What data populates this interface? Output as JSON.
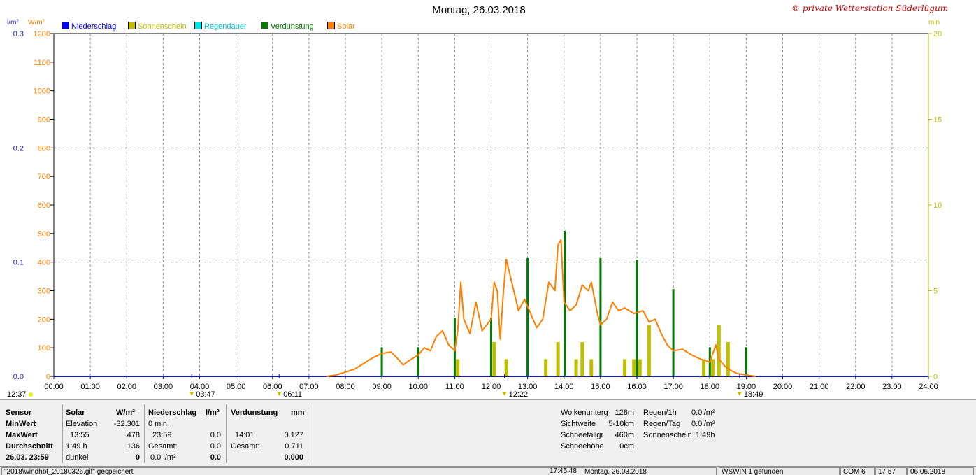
{
  "header": {
    "title": "Montag, 26.03.2018",
    "copyright": "© private Wetterstation Süderlügum",
    "left_unit_rain": "l/m²",
    "left_unit_solar": "W/m²",
    "right_unit": "min"
  },
  "legend": [
    {
      "label": "Niederschlag",
      "color": "#0000ff"
    },
    {
      "label": "Sonnenschein",
      "color": "#bfbf00"
    },
    {
      "label": "Regendauer",
      "color": "#00e5e5"
    },
    {
      "label": "Verdunstung",
      "color": "#007a00"
    },
    {
      "label": "Solar",
      "color": "#ff7f00"
    }
  ],
  "colors": {
    "rain": "#1a1aa8",
    "solar": "#ff7f00",
    "sun": "#bfbf00",
    "evap": "#007a00",
    "grid": "#8c8c8c",
    "axis_solar": "#ff7f00",
    "axis_rain": "#1a1aa8",
    "axis_right": "#bfbf00"
  },
  "chart_data": {
    "type": "line",
    "x_range": [
      "00:00",
      "24:00"
    ],
    "x_ticks": [
      "00:00",
      "01:00",
      "02:00",
      "03:00",
      "04:00",
      "05:00",
      "06:00",
      "07:00",
      "08:00",
      "09:00",
      "10:00",
      "11:00",
      "12:00",
      "13:00",
      "14:00",
      "15:00",
      "16:00",
      "17:00",
      "18:00",
      "19:00",
      "20:00",
      "21:00",
      "22:00",
      "23:00",
      "24:00"
    ],
    "axes": {
      "solar": {
        "unit": "W/m²",
        "range": [
          0,
          1200
        ],
        "ticks": [
          0,
          100,
          200,
          300,
          400,
          500,
          600,
          700,
          800,
          900,
          1000,
          1100,
          1200
        ]
      },
      "rain": {
        "unit": "l/m²",
        "range": [
          0,
          0.3
        ],
        "ticks": [
          "0.0",
          "0.1",
          "0.2",
          "0.3"
        ]
      },
      "minutes": {
        "unit": "min",
        "range": [
          0,
          20
        ],
        "ticks": [
          0,
          5,
          10,
          15,
          20
        ]
      }
    },
    "grid": true,
    "markers": {
      "top": [
        {
          "time": "03:47",
          "label": "03:47"
        },
        {
          "time": "06:11",
          "label": "06:11"
        },
        {
          "time": "12:22",
          "label": "12:22"
        },
        {
          "time": "18:49",
          "label": "18:49"
        }
      ],
      "moon_label": "12:37"
    },
    "series": [
      {
        "name": "Solar",
        "unit": "W/m²",
        "points": [
          [
            "07:30",
            0
          ],
          [
            "07:45",
            5
          ],
          [
            "08:00",
            15
          ],
          [
            "08:15",
            25
          ],
          [
            "08:30",
            45
          ],
          [
            "08:45",
            65
          ],
          [
            "09:00",
            80
          ],
          [
            "09:15",
            85
          ],
          [
            "09:25",
            65
          ],
          [
            "09:35",
            40
          ],
          [
            "09:45",
            55
          ],
          [
            "10:00",
            75
          ],
          [
            "10:10",
            100
          ],
          [
            "10:20",
            90
          ],
          [
            "10:30",
            140
          ],
          [
            "10:40",
            160
          ],
          [
            "10:50",
            110
          ],
          [
            "11:00",
            90
          ],
          [
            "11:05",
            160
          ],
          [
            "11:10",
            330
          ],
          [
            "11:15",
            200
          ],
          [
            "11:25",
            150
          ],
          [
            "11:35",
            260
          ],
          [
            "11:45",
            160
          ],
          [
            "12:00",
            200
          ],
          [
            "12:05",
            330
          ],
          [
            "12:10",
            300
          ],
          [
            "12:15",
            130
          ],
          [
            "12:20",
            290
          ],
          [
            "12:25",
            410
          ],
          [
            "12:35",
            320
          ],
          [
            "12:45",
            230
          ],
          [
            "12:55",
            270
          ],
          [
            "13:05",
            220
          ],
          [
            "13:15",
            170
          ],
          [
            "13:25",
            200
          ],
          [
            "13:35",
            330
          ],
          [
            "13:45",
            300
          ],
          [
            "13:50",
            460
          ],
          [
            "13:55",
            478
          ],
          [
            "14:00",
            260
          ],
          [
            "14:10",
            230
          ],
          [
            "14:20",
            250
          ],
          [
            "14:30",
            320
          ],
          [
            "14:40",
            300
          ],
          [
            "14:45",
            330
          ],
          [
            "14:55",
            220
          ],
          [
            "15:00",
            180
          ],
          [
            "15:10",
            200
          ],
          [
            "15:20",
            260
          ],
          [
            "15:30",
            230
          ],
          [
            "15:40",
            240
          ],
          [
            "15:55",
            220
          ],
          [
            "16:10",
            230
          ],
          [
            "16:20",
            190
          ],
          [
            "16:30",
            200
          ],
          [
            "16:40",
            150
          ],
          [
            "16:50",
            110
          ],
          [
            "17:00",
            90
          ],
          [
            "17:15",
            95
          ],
          [
            "17:30",
            75
          ],
          [
            "17:45",
            60
          ],
          [
            "18:00",
            50
          ],
          [
            "18:10",
            110
          ],
          [
            "18:15",
            60
          ],
          [
            "18:25",
            35
          ],
          [
            "18:35",
            20
          ],
          [
            "18:45",
            10
          ],
          [
            "19:00",
            5
          ],
          [
            "19:15",
            0
          ]
        ]
      },
      {
        "name": "Verdunstung",
        "bars": [
          {
            "time": "09:00",
            "min": 1.7
          },
          {
            "time": "10:00",
            "min": 1.7
          },
          {
            "time": "11:00",
            "min": 3.4
          },
          {
            "time": "12:00",
            "min": 3.4
          },
          {
            "time": "13:00",
            "min": 6.9
          },
          {
            "time": "14:01",
            "min": 8.5
          },
          {
            "time": "15:00",
            "min": 6.9
          },
          {
            "time": "16:00",
            "min": 6.8
          },
          {
            "time": "17:00",
            "min": 5.1
          },
          {
            "time": "18:00",
            "min": 1.7
          },
          {
            "time": "19:00",
            "min": 1.7
          }
        ]
      },
      {
        "name": "Sonnenschein",
        "bars": [
          {
            "time": "11:05",
            "min": 1.0
          },
          {
            "time": "12:05",
            "min": 2.0
          },
          {
            "time": "12:25",
            "min": 1.0
          },
          {
            "time": "13:30",
            "min": 1.0
          },
          {
            "time": "13:50",
            "min": 2.0
          },
          {
            "time": "14:20",
            "min": 1.0
          },
          {
            "time": "14:30",
            "min": 2.0
          },
          {
            "time": "14:45",
            "min": 1.0
          },
          {
            "time": "15:40",
            "min": 1.0
          },
          {
            "time": "15:55",
            "min": 1.0
          },
          {
            "time": "16:05",
            "min": 1.0
          },
          {
            "time": "16:20",
            "min": 3.0
          },
          {
            "time": "17:50",
            "min": 1.0
          },
          {
            "time": "18:05",
            "min": 1.0
          },
          {
            "time": "18:15",
            "min": 3.0
          },
          {
            "time": "18:30",
            "min": 2.0
          }
        ]
      }
    ]
  },
  "stats": {
    "col1": [
      "Sensor",
      "MinWert",
      "MaxWert",
      "Durchschnitt",
      "26.03. 23:59"
    ],
    "solar": {
      "header": "Solar",
      "unit": "W/m²",
      "rows": [
        [
          "Elevation",
          "-32.301"
        ],
        [
          "13:55",
          "478"
        ],
        [
          "1:49 h",
          "136"
        ],
        [
          "dunkel",
          "0"
        ]
      ]
    },
    "rain": {
      "header": "Niederschlag",
      "unit": "l/m²",
      "rows": [
        [
          "0 min.",
          ""
        ],
        [
          "23:59",
          "0.0"
        ],
        [
          "Gesamt:",
          "0.0"
        ],
        [
          "0.0 l/m²",
          "0.0"
        ]
      ]
    },
    "evap": {
      "header": "Verdunstung",
      "unit": "mm",
      "rows": [
        [
          "",
          ""
        ],
        [
          "14:01",
          "0.127"
        ],
        [
          "Gesamt:",
          "0.711"
        ],
        [
          "",
          "0.000"
        ]
      ]
    },
    "weather": [
      [
        "Wolkenunterg",
        "128m"
      ],
      [
        "Sichtweite",
        "5-10km"
      ],
      [
        "Schneefallgr",
        "460m"
      ],
      [
        "Schneehöhe",
        "0cm"
      ]
    ],
    "rain_extra": [
      [
        "Regen/1h",
        "0.0l/m²"
      ],
      [
        "Regen/Tag",
        "0.0l/m²"
      ],
      [
        "Sonnenschein",
        "1:49h"
      ]
    ]
  },
  "statusbar": {
    "file": "\"2018\\windhbt_20180326.gif\" gespeichert",
    "time": "17:45:48",
    "date": "Montag, 26.03.2018",
    "found": "WSWIN 1 gefunden",
    "com": "COM 6",
    "clock": "17:57",
    "today": "06.06.2018"
  }
}
